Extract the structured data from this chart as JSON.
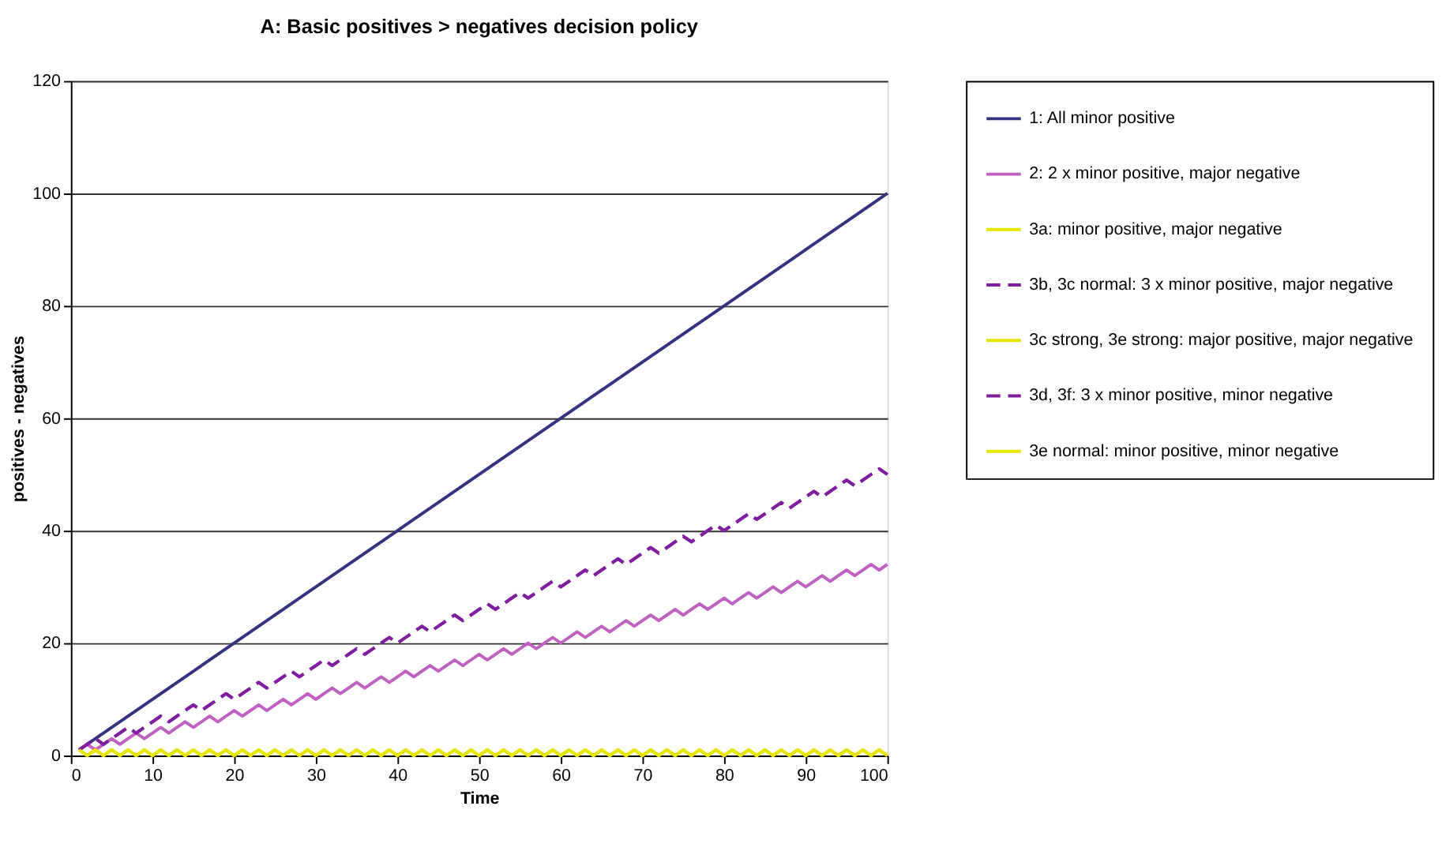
{
  "chart_data": {
    "type": "line",
    "title": "A: Basic positives > negatives decision policy",
    "xlabel": "Time",
    "ylabel": "positives - negatives",
    "x": [
      1,
      2,
      3,
      4,
      5,
      6,
      7,
      8,
      9,
      10,
      11,
      12,
      13,
      14,
      15,
      16,
      17,
      18,
      19,
      20,
      21,
      22,
      23,
      24,
      25,
      26,
      27,
      28,
      29,
      30,
      31,
      32,
      33,
      34,
      35,
      36,
      37,
      38,
      39,
      40,
      41,
      42,
      43,
      44,
      45,
      46,
      47,
      48,
      49,
      50,
      51,
      52,
      53,
      54,
      55,
      56,
      57,
      58,
      59,
      60,
      61,
      62,
      63,
      64,
      65,
      66,
      67,
      68,
      69,
      70,
      71,
      72,
      73,
      74,
      75,
      76,
      77,
      78,
      79,
      80,
      81,
      82,
      83,
      84,
      85,
      86,
      87,
      88,
      89,
      90,
      91,
      92,
      93,
      94,
      95,
      96,
      97,
      98,
      99,
      100
    ],
    "xlim": [
      0,
      100
    ],
    "xticks": [
      0,
      10,
      20,
      30,
      40,
      50,
      60,
      70,
      80,
      90,
      100
    ],
    "ylim": [
      0,
      120
    ],
    "yticks": [
      0,
      20,
      40,
      60,
      80,
      100,
      120
    ],
    "grid": "y",
    "legend": "right",
    "series": [
      {
        "name": "1: All minor positive",
        "color": "#333380",
        "line_style": "solid",
        "x": [
          1,
          100
        ],
        "values": [
          1,
          100
        ]
      },
      {
        "name": "2: 2 x minor positive, major negative",
        "color": "#c060c0",
        "line_style": "solid",
        "values": [
          1,
          2,
          1,
          2,
          3,
          2,
          3,
          4,
          3,
          4,
          5,
          4,
          5,
          6,
          5,
          6,
          7,
          6,
          7,
          8,
          7,
          8,
          9,
          8,
          9,
          10,
          9,
          10,
          11,
          10,
          11,
          12,
          11,
          12,
          13,
          12,
          13,
          14,
          13,
          14,
          15,
          14,
          15,
          16,
          15,
          16,
          17,
          16,
          17,
          18,
          17,
          18,
          19,
          18,
          19,
          20,
          19,
          20,
          21,
          20,
          21,
          22,
          21,
          22,
          23,
          22,
          23,
          24,
          23,
          24,
          25,
          24,
          25,
          26,
          25,
          26,
          27,
          26,
          27,
          28,
          27,
          28,
          29,
          28,
          29,
          30,
          29,
          30,
          31,
          30,
          31,
          32,
          31,
          32,
          33,
          32,
          33,
          34,
          33,
          34
        ]
      },
      {
        "name": "3a: minor positive, major negative",
        "color": "#e6e600",
        "line_style": "solid",
        "values": [
          1,
          0,
          1,
          0,
          1,
          0,
          1,
          0,
          1,
          0,
          1,
          0,
          1,
          0,
          1,
          0,
          1,
          0,
          1,
          0,
          1,
          0,
          1,
          0,
          1,
          0,
          1,
          0,
          1,
          0,
          1,
          0,
          1,
          0,
          1,
          0,
          1,
          0,
          1,
          0,
          1,
          0,
          1,
          0,
          1,
          0,
          1,
          0,
          1,
          0,
          1,
          0,
          1,
          0,
          1,
          0,
          1,
          0,
          1,
          0,
          1,
          0,
          1,
          0,
          1,
          0,
          1,
          0,
          1,
          0,
          1,
          0,
          1,
          0,
          1,
          0,
          1,
          0,
          1,
          0,
          1,
          0,
          1,
          0,
          1,
          0,
          1,
          0,
          1,
          0,
          1,
          0,
          1,
          0,
          1,
          0,
          1,
          0,
          1,
          0
        ]
      },
      {
        "name": "3b, 3c normal: 3 x minor positive, major negative",
        "color": "#7f1f9f",
        "line_style": "dashed",
        "values": [
          1,
          2,
          3,
          2,
          3,
          4,
          5,
          4,
          5,
          6,
          7,
          6,
          7,
          8,
          9,
          8,
          9,
          10,
          11,
          10,
          11,
          12,
          13,
          12,
          13,
          14,
          15,
          14,
          15,
          16,
          17,
          16,
          17,
          18,
          19,
          18,
          19,
          20,
          21,
          20,
          21,
          22,
          23,
          22,
          23,
          24,
          25,
          24,
          25,
          26,
          27,
          26,
          27,
          28,
          29,
          28,
          29,
          30,
          31,
          30,
          31,
          32,
          33,
          32,
          33,
          34,
          35,
          34,
          35,
          36,
          37,
          36,
          37,
          38,
          39,
          38,
          39,
          40,
          41,
          40,
          41,
          42,
          43,
          42,
          43,
          44,
          45,
          44,
          45,
          46,
          47,
          46,
          47,
          48,
          49,
          48,
          49,
          50,
          51,
          50
        ]
      },
      {
        "name": "3c strong, 3e strong: major positive, major negative",
        "color": "#e6e600",
        "line_style": "solid",
        "values": [
          1,
          0,
          1,
          0,
          1,
          0,
          1,
          0,
          1,
          0,
          1,
          0,
          1,
          0,
          1,
          0,
          1,
          0,
          1,
          0,
          1,
          0,
          1,
          0,
          1,
          0,
          1,
          0,
          1,
          0,
          1,
          0,
          1,
          0,
          1,
          0,
          1,
          0,
          1,
          0,
          1,
          0,
          1,
          0,
          1,
          0,
          1,
          0,
          1,
          0,
          1,
          0,
          1,
          0,
          1,
          0,
          1,
          0,
          1,
          0,
          1,
          0,
          1,
          0,
          1,
          0,
          1,
          0,
          1,
          0,
          1,
          0,
          1,
          0,
          1,
          0,
          1,
          0,
          1,
          0,
          1,
          0,
          1,
          0,
          1,
          0,
          1,
          0,
          1,
          0,
          1,
          0,
          1,
          0,
          1,
          0,
          1,
          0,
          1,
          0
        ]
      },
      {
        "name": "3d, 3f: 3 x minor positive, minor negative",
        "color": "#7f1f9f",
        "line_style": "dashed",
        "values": [
          1,
          2,
          3,
          2,
          3,
          4,
          5,
          4,
          5,
          6,
          7,
          6,
          7,
          8,
          9,
          8,
          9,
          10,
          11,
          10,
          11,
          12,
          13,
          12,
          13,
          14,
          15,
          14,
          15,
          16,
          17,
          16,
          17,
          18,
          19,
          18,
          19,
          20,
          21,
          20,
          21,
          22,
          23,
          22,
          23,
          24,
          25,
          24,
          25,
          26,
          27,
          26,
          27,
          28,
          29,
          28,
          29,
          30,
          31,
          30,
          31,
          32,
          33,
          32,
          33,
          34,
          35,
          34,
          35,
          36,
          37,
          36,
          37,
          38,
          39,
          38,
          39,
          40,
          41,
          40,
          41,
          42,
          43,
          42,
          43,
          44,
          45,
          44,
          45,
          46,
          47,
          46,
          47,
          48,
          49,
          48,
          49,
          50,
          51,
          50
        ]
      },
      {
        "name": "3e normal: minor positive, minor negative",
        "color": "#e6e600",
        "line_style": "solid",
        "values": [
          1,
          0,
          1,
          0,
          1,
          0,
          1,
          0,
          1,
          0,
          1,
          0,
          1,
          0,
          1,
          0,
          1,
          0,
          1,
          0,
          1,
          0,
          1,
          0,
          1,
          0,
          1,
          0,
          1,
          0,
          1,
          0,
          1,
          0,
          1,
          0,
          1,
          0,
          1,
          0,
          1,
          0,
          1,
          0,
          1,
          0,
          1,
          0,
          1,
          0,
          1,
          0,
          1,
          0,
          1,
          0,
          1,
          0,
          1,
          0,
          1,
          0,
          1,
          0,
          1,
          0,
          1,
          0,
          1,
          0,
          1,
          0,
          1,
          0,
          1,
          0,
          1,
          0,
          1,
          0,
          1,
          0,
          1,
          0,
          1,
          0,
          1,
          0,
          1,
          0,
          1,
          0,
          1,
          0,
          1,
          0,
          1,
          0,
          1,
          0
        ]
      }
    ]
  }
}
